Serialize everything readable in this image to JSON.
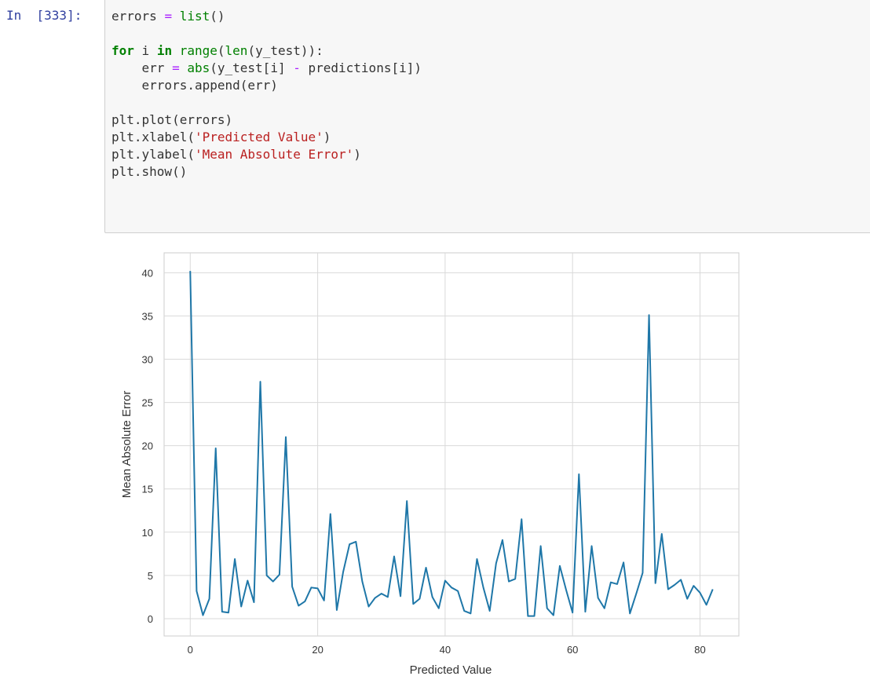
{
  "cell": {
    "prompt": "In  [333]:",
    "code_lines": [
      [
        {
          "t": "errors ",
          "c": ""
        },
        {
          "t": "=",
          "c": "op"
        },
        {
          "t": " ",
          "c": ""
        },
        {
          "t": "list",
          "c": "fn"
        },
        {
          "t": "()",
          "c": ""
        }
      ],
      [],
      [
        {
          "t": "for",
          "c": "kw"
        },
        {
          "t": " i ",
          "c": ""
        },
        {
          "t": "in",
          "c": "kw"
        },
        {
          "t": " ",
          "c": ""
        },
        {
          "t": "range",
          "c": "fn"
        },
        {
          "t": "(",
          "c": ""
        },
        {
          "t": "len",
          "c": "fn"
        },
        {
          "t": "(y_test)):",
          "c": ""
        }
      ],
      [
        {
          "t": "    err ",
          "c": ""
        },
        {
          "t": "=",
          "c": "op"
        },
        {
          "t": " ",
          "c": ""
        },
        {
          "t": "abs",
          "c": "fn"
        },
        {
          "t": "(y_test[i] ",
          "c": ""
        },
        {
          "t": "-",
          "c": "op"
        },
        {
          "t": " predictions[i])",
          "c": ""
        }
      ],
      [
        {
          "t": "    errors.append(err)",
          "c": ""
        }
      ],
      [],
      [
        {
          "t": "plt.plot(errors)",
          "c": ""
        }
      ],
      [
        {
          "t": "plt.xlabel(",
          "c": ""
        },
        {
          "t": "'Predicted Value'",
          "c": "str"
        },
        {
          "t": ")",
          "c": ""
        }
      ],
      [
        {
          "t": "plt.ylabel(",
          "c": ""
        },
        {
          "t": "'Mean Absolute Error'",
          "c": "str"
        },
        {
          "t": ")",
          "c": ""
        }
      ],
      [
        {
          "t": "plt.show()",
          "c": ""
        }
      ]
    ]
  },
  "colors": {
    "line": "#1f77a8",
    "grid": "#d9d9d9",
    "frame": "#cccccc",
    "prompt": "#303f9f"
  },
  "chart_data": {
    "type": "line",
    "title": "",
    "xlabel": "Predicted Value",
    "ylabel": "Mean Absolute Error",
    "xlim": [
      -4.1,
      86.1
    ],
    "ylim": [
      -2.0,
      42.3
    ],
    "xticks": [
      0,
      20,
      40,
      60,
      80
    ],
    "yticks": [
      0,
      5,
      10,
      15,
      20,
      25,
      30,
      35,
      40
    ],
    "grid": true,
    "series": [
      {
        "values": [
          40.2,
          3.2,
          0.4,
          2.3,
          19.7,
          0.8,
          0.7,
          6.9,
          1.4,
          4.4,
          1.9,
          27.4,
          5.0,
          4.3,
          5.1,
          21.0,
          3.7,
          1.5,
          2.0,
          3.6,
          3.5,
          2.1,
          12.1,
          1.0,
          5.4,
          8.6,
          8.9,
          4.3,
          1.4,
          2.4,
          2.9,
          2.5,
          7.2,
          2.6,
          13.6,
          1.7,
          2.3,
          5.9,
          2.5,
          1.2,
          4.4,
          3.6,
          3.2,
          0.9,
          0.6,
          6.9,
          3.6,
          0.9,
          6.4,
          9.1,
          4.3,
          4.6,
          11.5,
          0.3,
          0.3,
          8.4,
          1.2,
          0.4,
          6.1,
          3.3,
          0.7,
          16.7,
          0.8,
          8.4,
          2.4,
          1.2,
          4.2,
          4.0,
          6.5,
          0.6,
          2.9,
          5.3,
          35.1,
          4.1,
          9.8,
          3.4,
          3.9,
          4.5,
          2.3,
          3.8,
          3.0,
          1.6,
          3.4
        ]
      }
    ]
  }
}
